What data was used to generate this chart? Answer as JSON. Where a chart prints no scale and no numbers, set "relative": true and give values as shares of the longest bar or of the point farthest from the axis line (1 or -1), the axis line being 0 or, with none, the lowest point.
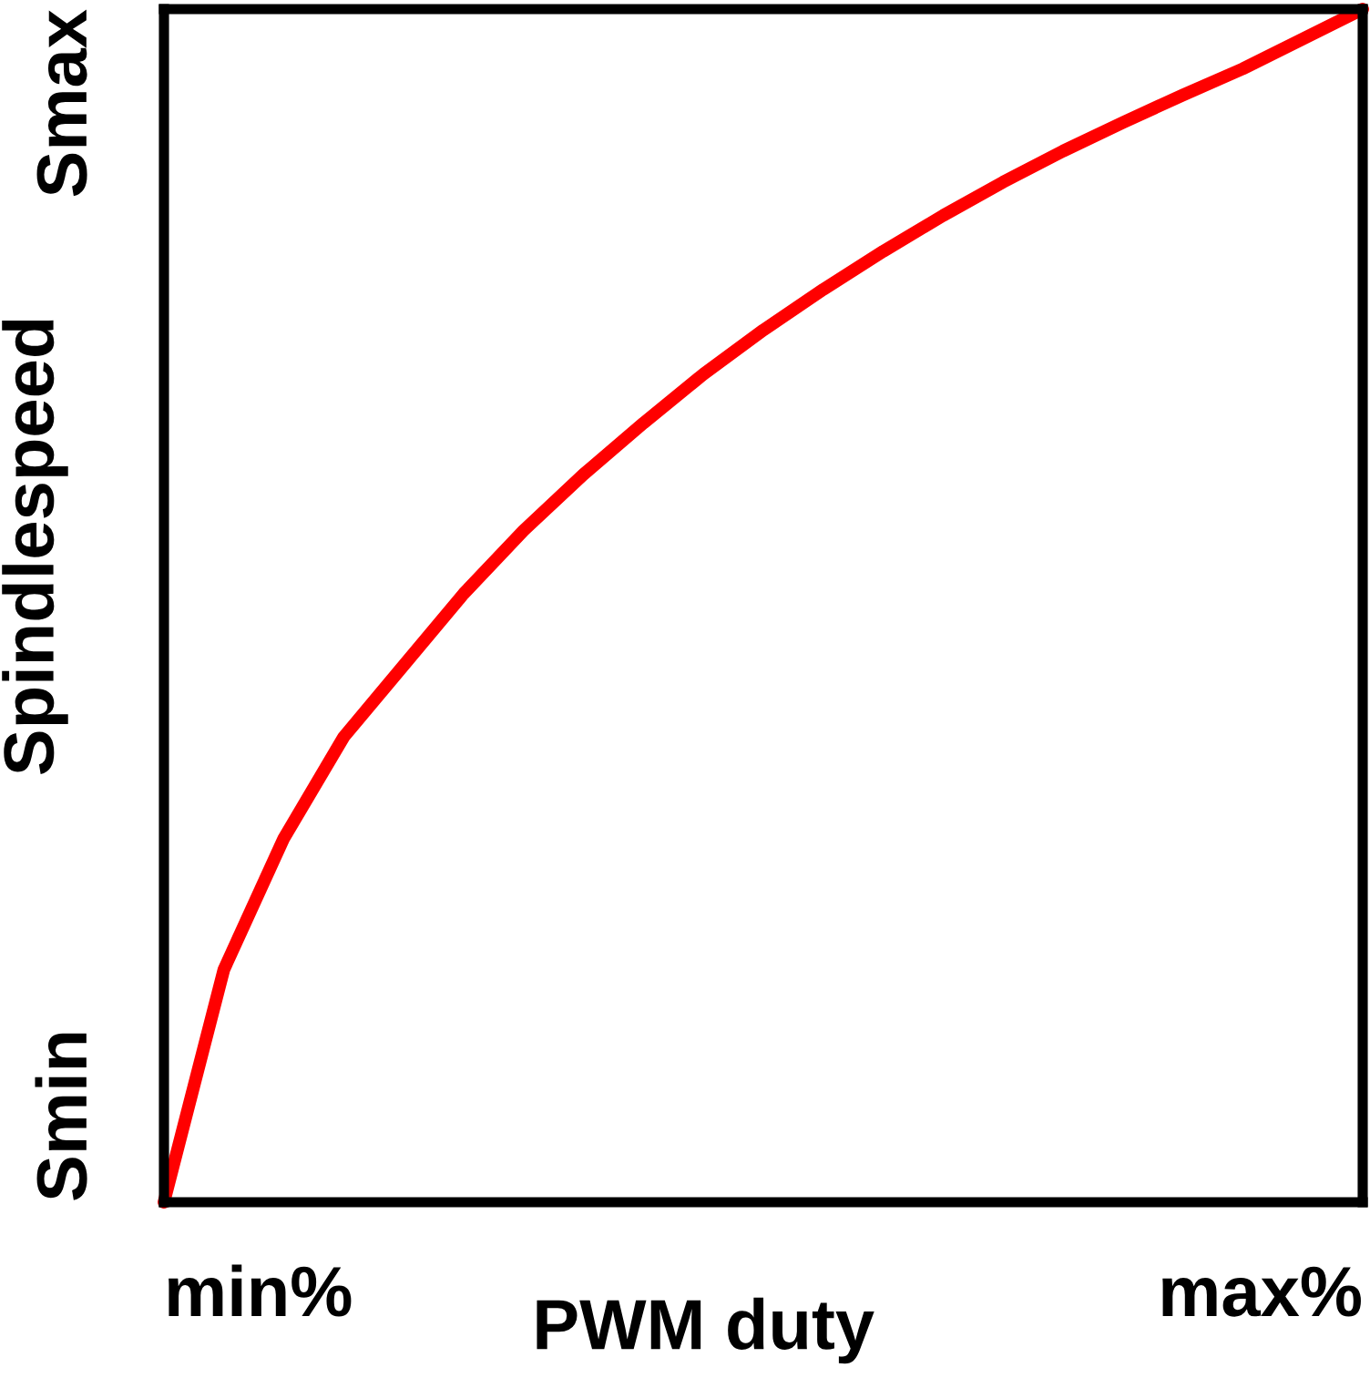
{
  "chart_data": {
    "type": "line",
    "xlabel": "PWM duty",
    "ylabel": "Spindlespeed",
    "relative": true,
    "categories": [
      null,
      null,
      null,
      null,
      null,
      null,
      null,
      null,
      null,
      null,
      null,
      null,
      null,
      null,
      null,
      null,
      null,
      null,
      null,
      null,
      null
    ],
    "series": [
      {
        "color": "#ff0000",
        "values": [
          0,
          0.195,
          0.305,
          0.39,
          0.45,
          0.51,
          0.563,
          0.61,
          0.653,
          0.694,
          0.731,
          0.765,
          0.797,
          0.827,
          0.855,
          0.881,
          0.905,
          0.928,
          0.95,
          0.975,
          1
        ]
      }
    ],
    "annotations": [
      "min%",
      "max%",
      "Smin",
      "Smax"
    ],
    "marker": "none",
    "line_style": "solid"
  }
}
